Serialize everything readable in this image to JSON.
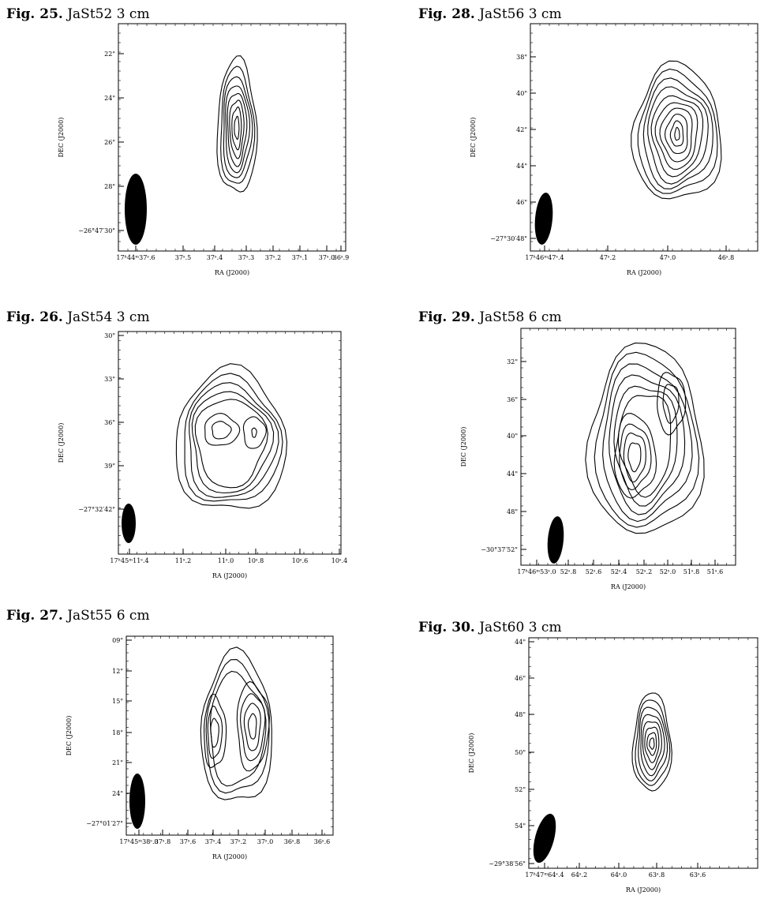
{
  "figures": [
    {
      "id": "fig25",
      "label": "Fig. 25.",
      "caption": "JaSt52 3 cm",
      "xlabel": "RA (J2000)",
      "ylabel": "DEC (J2000)",
      "xticks": [
        "17h44m37s.6",
        "37s.5",
        "37s.4",
        "37s.3",
        "37s.2",
        "37s.1",
        "37s.0",
        "36s.9"
      ],
      "yticks": [
        "22\"",
        "24\"",
        "26\"",
        "28\"",
        "−26°47′30\""
      ]
    },
    {
      "id": "fig26",
      "label": "Fig. 26.",
      "caption": "JaSt54 3 cm",
      "xlabel": "RA (J2000)",
      "ylabel": "DEC (J2000)",
      "xticks": [
        "17h45m11s.4",
        "11s.2",
        "11s.0",
        "10s.8",
        "10s.6",
        "10s.4"
      ],
      "yticks": [
        "30\"",
        "33\"",
        "36\"",
        "39\"",
        "−27°32′42\""
      ]
    },
    {
      "id": "fig27",
      "label": "Fig. 27.",
      "caption": "JaSt55 6 cm",
      "xlabel": "RA (J2000)",
      "ylabel": "DEC (J2000)",
      "xticks": [
        "17h45m38s.0",
        "37s.8",
        "37s.6",
        "37s.4",
        "37s.2",
        "37s.0",
        "36s.8",
        "36s.6"
      ],
      "yticks": [
        "09\"",
        "12\"",
        "15\"",
        "18\"",
        "21\"",
        "24\"",
        "−27°01′27\""
      ]
    },
    {
      "id": "fig28",
      "label": "Fig. 28.",
      "caption": "JaSt56 3 cm",
      "xlabel": "RA (J2000)",
      "ylabel": "DEC (J2000)",
      "xticks": [
        "17h46m47s.4",
        "47s.2",
        "47s.0",
        "46s.8"
      ],
      "yticks": [
        "38\"",
        "40\"",
        "42\"",
        "44\"",
        "46\"",
        "−27°30′48\""
      ]
    },
    {
      "id": "fig29",
      "label": "Fig. 29.",
      "caption": "JaSt58 6 cm",
      "xlabel": "RA (J2000)",
      "ylabel": "DEC (J2000)",
      "xticks": [
        "17h46m53s.0",
        "52s.8",
        "52s.6",
        "52s.4",
        "52s.2",
        "52s.0",
        "51s.8",
        "51s.6"
      ],
      "yticks": [
        "32\"",
        "36\"",
        "40\"",
        "44\"",
        "48\"",
        "−30°37′52\""
      ]
    },
    {
      "id": "fig30",
      "label": "Fig. 30.",
      "caption": "JaSt60 3 cm",
      "xlabel": "RA (J2000)",
      "ylabel": "DEC (J2000)",
      "xticks": [
        "17h47m64s.4",
        "64s.2",
        "64s.0",
        "63s.8",
        "63s.6"
      ],
      "yticks": [
        "44\"",
        "46\"",
        "48\"",
        "50\"",
        "52\"",
        "54\"",
        "−29°38′56\""
      ]
    }
  ]
}
